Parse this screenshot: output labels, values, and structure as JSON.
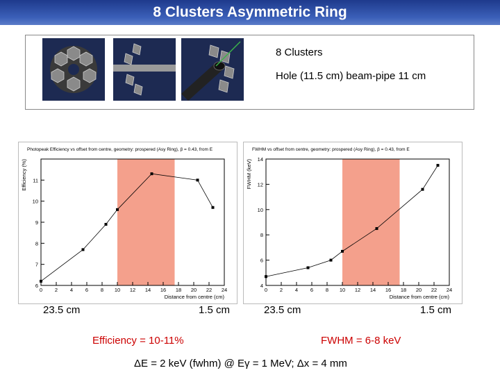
{
  "title": "8 Clusters Asymmetric Ring",
  "info": {
    "clusters": "8 Clusters",
    "hole": "Hole (11.5 cm) beam-pipe  11 cm"
  },
  "left_plot_labels": {
    "outer": "23.5 cm",
    "inner": "1.5 cm",
    "result": "Efficiency = 10-11%"
  },
  "right_plot_labels": {
    "outer": "23.5 cm",
    "inner": "1.5 cm",
    "result": "FWHM = 6-8 keV"
  },
  "footer": "ΔE = 2 keV (fwhm)  @ Eγ = 1 MeV;  Δx = 4 mm",
  "chart_data": [
    {
      "type": "line",
      "title": "Photopeak Efficiency vs offset from centre, geometry: prospered (Asy Ring), β = 0.43, from E",
      "xlabel": "Distance from centre (cm)",
      "ylabel": "Efficiency (%)",
      "xlim": [
        0,
        24
      ],
      "ylim": [
        6,
        12
      ],
      "xticks": [
        "0",
        "2",
        "4",
        "6",
        "8",
        "10",
        "12",
        "14",
        "16",
        "18",
        "20",
        "22",
        "24"
      ],
      "yticks": [
        "6",
        "7",
        "8",
        "9",
        "10",
        "11"
      ],
      "highlight_x": [
        10,
        17.5
      ],
      "x": [
        0,
        5.5,
        8.5,
        10,
        14.5,
        20.5,
        22.5
      ],
      "y": [
        6.2,
        7.7,
        8.9,
        9.6,
        11.3,
        11.0,
        9.7
      ],
      "colors": {
        "line": "#000000",
        "band": "#f4a08c"
      }
    },
    {
      "type": "line",
      "title": "FWHM vs offset from centre, geometry: prospered (Asy Ring), β = 0.43, from E",
      "xlabel": "Distance from centre (cm)",
      "ylabel": "FWHM (keV)",
      "xlim": [
        0,
        24
      ],
      "ylim": [
        4,
        14
      ],
      "xticks": [
        "0",
        "2",
        "4",
        "6",
        "8",
        "10",
        "12",
        "14",
        "16",
        "18",
        "20",
        "22",
        "24"
      ],
      "yticks": [
        "4",
        "6",
        "8",
        "10",
        "12",
        "14"
      ],
      "highlight_x": [
        10,
        17.5
      ],
      "x": [
        0,
        5.5,
        8.5,
        10,
        14.5,
        20.5,
        22.5
      ],
      "y": [
        4.7,
        5.4,
        6.0,
        6.7,
        8.5,
        11.6,
        13.5
      ],
      "colors": {
        "line": "#000000",
        "band": "#f4a08c"
      }
    }
  ]
}
